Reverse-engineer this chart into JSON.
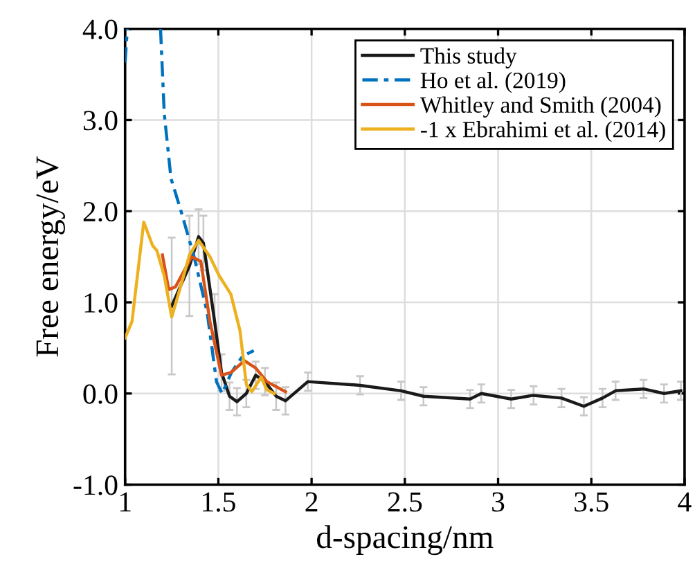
{
  "chart_data": {
    "type": "line",
    "xlabel": "d-spacing/nm",
    "ylabel": "Free energy/eV",
    "xlim": [
      1,
      4
    ],
    "ylim": [
      -1,
      4
    ],
    "xticks": [
      1,
      1.5,
      2,
      2.5,
      3,
      3.5,
      4
    ],
    "yticks": [
      {
        "value": -1,
        "label": "-1.0"
      },
      {
        "value": 0,
        "label": "0.0"
      },
      {
        "value": 1,
        "label": "1.0"
      },
      {
        "value": 2,
        "label": "2.0"
      },
      {
        "value": 3,
        "label": "3.0"
      },
      {
        "value": 4,
        "label": "4.0"
      }
    ],
    "grid": true,
    "legend": "top right",
    "line_style": "solid",
    "marker": "none",
    "series": [
      {
        "name": "This study",
        "color": "#1a1a1a",
        "x": [
          1.25,
          1.345,
          1.394,
          1.42,
          1.48,
          1.517,
          1.56,
          1.6,
          1.65,
          1.7,
          1.75,
          1.81,
          1.86,
          1.98,
          2.26,
          2.48,
          2.6,
          2.85,
          2.91,
          3.07,
          3.19,
          3.34,
          3.46,
          3.56,
          3.63,
          3.78,
          3.89,
          3.98
        ],
        "values": [
          0.96,
          1.4,
          1.72,
          1.65,
          0.79,
          0.23,
          -0.03,
          -0.09,
          0,
          0.2,
          0.13,
          -0.03,
          -0.08,
          0.13,
          0.09,
          0.03,
          -0.03,
          -0.06,
          0,
          -0.06,
          -0.02,
          -0.05,
          -0.14,
          -0.05,
          0.03,
          0.05,
          0,
          0.03
        ],
        "errors": [
          0.75,
          0.55,
          0.3,
          0.3,
          0.3,
          0.2,
          0.15,
          0.15,
          0.15,
          0.15,
          0.15,
          0.15,
          0.15,
          0.1,
          0.1,
          0.1,
          0.1,
          0.1,
          0.1,
          0.1,
          0.1,
          0.1,
          0.1,
          0.1,
          0.1,
          0.1,
          0.1,
          0.1
        ]
      },
      {
        "name": "Ho et al. (2019)",
        "color": "#0072bd",
        "line_style": "dashed",
        "x": [
          1.0,
          1.012,
          1.1,
          1.19,
          1.21,
          1.246,
          1.3,
          1.37,
          1.44,
          1.49,
          1.52,
          1.57,
          1.63,
          1.69
        ],
        "values": [
          3.63,
          4.0,
          null,
          4.0,
          3.07,
          2.36,
          2.0,
          1.5,
          0.89,
          0.13,
          0.0,
          0.23,
          0.41,
          0.47
        ]
      },
      {
        "name": "Whitley and Smith (2004)",
        "color": "#d95319",
        "x": [
          1.2,
          1.234,
          1.27,
          1.357,
          1.406,
          1.455,
          1.517,
          1.567,
          1.64,
          1.7,
          1.76,
          1.86
        ],
        "values": [
          1.52,
          1.14,
          1.17,
          1.5,
          1.45,
          0.79,
          0.2,
          0.23,
          0.36,
          0.28,
          0.13,
          0.02
        ]
      },
      {
        "name": "-1 x Ebrahimi et al. (2014)",
        "color": "#edb120",
        "x": [
          1.0,
          1.037,
          1.1,
          1.148,
          1.17,
          1.21,
          1.25,
          1.3,
          1.345,
          1.394,
          1.455,
          1.505,
          1.567,
          1.616,
          1.65,
          1.68,
          1.73,
          1.76,
          1.8
        ],
        "values": [
          0.61,
          0.79,
          1.88,
          1.62,
          1.57,
          1.29,
          0.84,
          1.19,
          1.52,
          1.68,
          1.5,
          1.29,
          1.09,
          0.69,
          0.1,
          0.02,
          0.18,
          0.04,
          0.0
        ]
      }
    ]
  }
}
